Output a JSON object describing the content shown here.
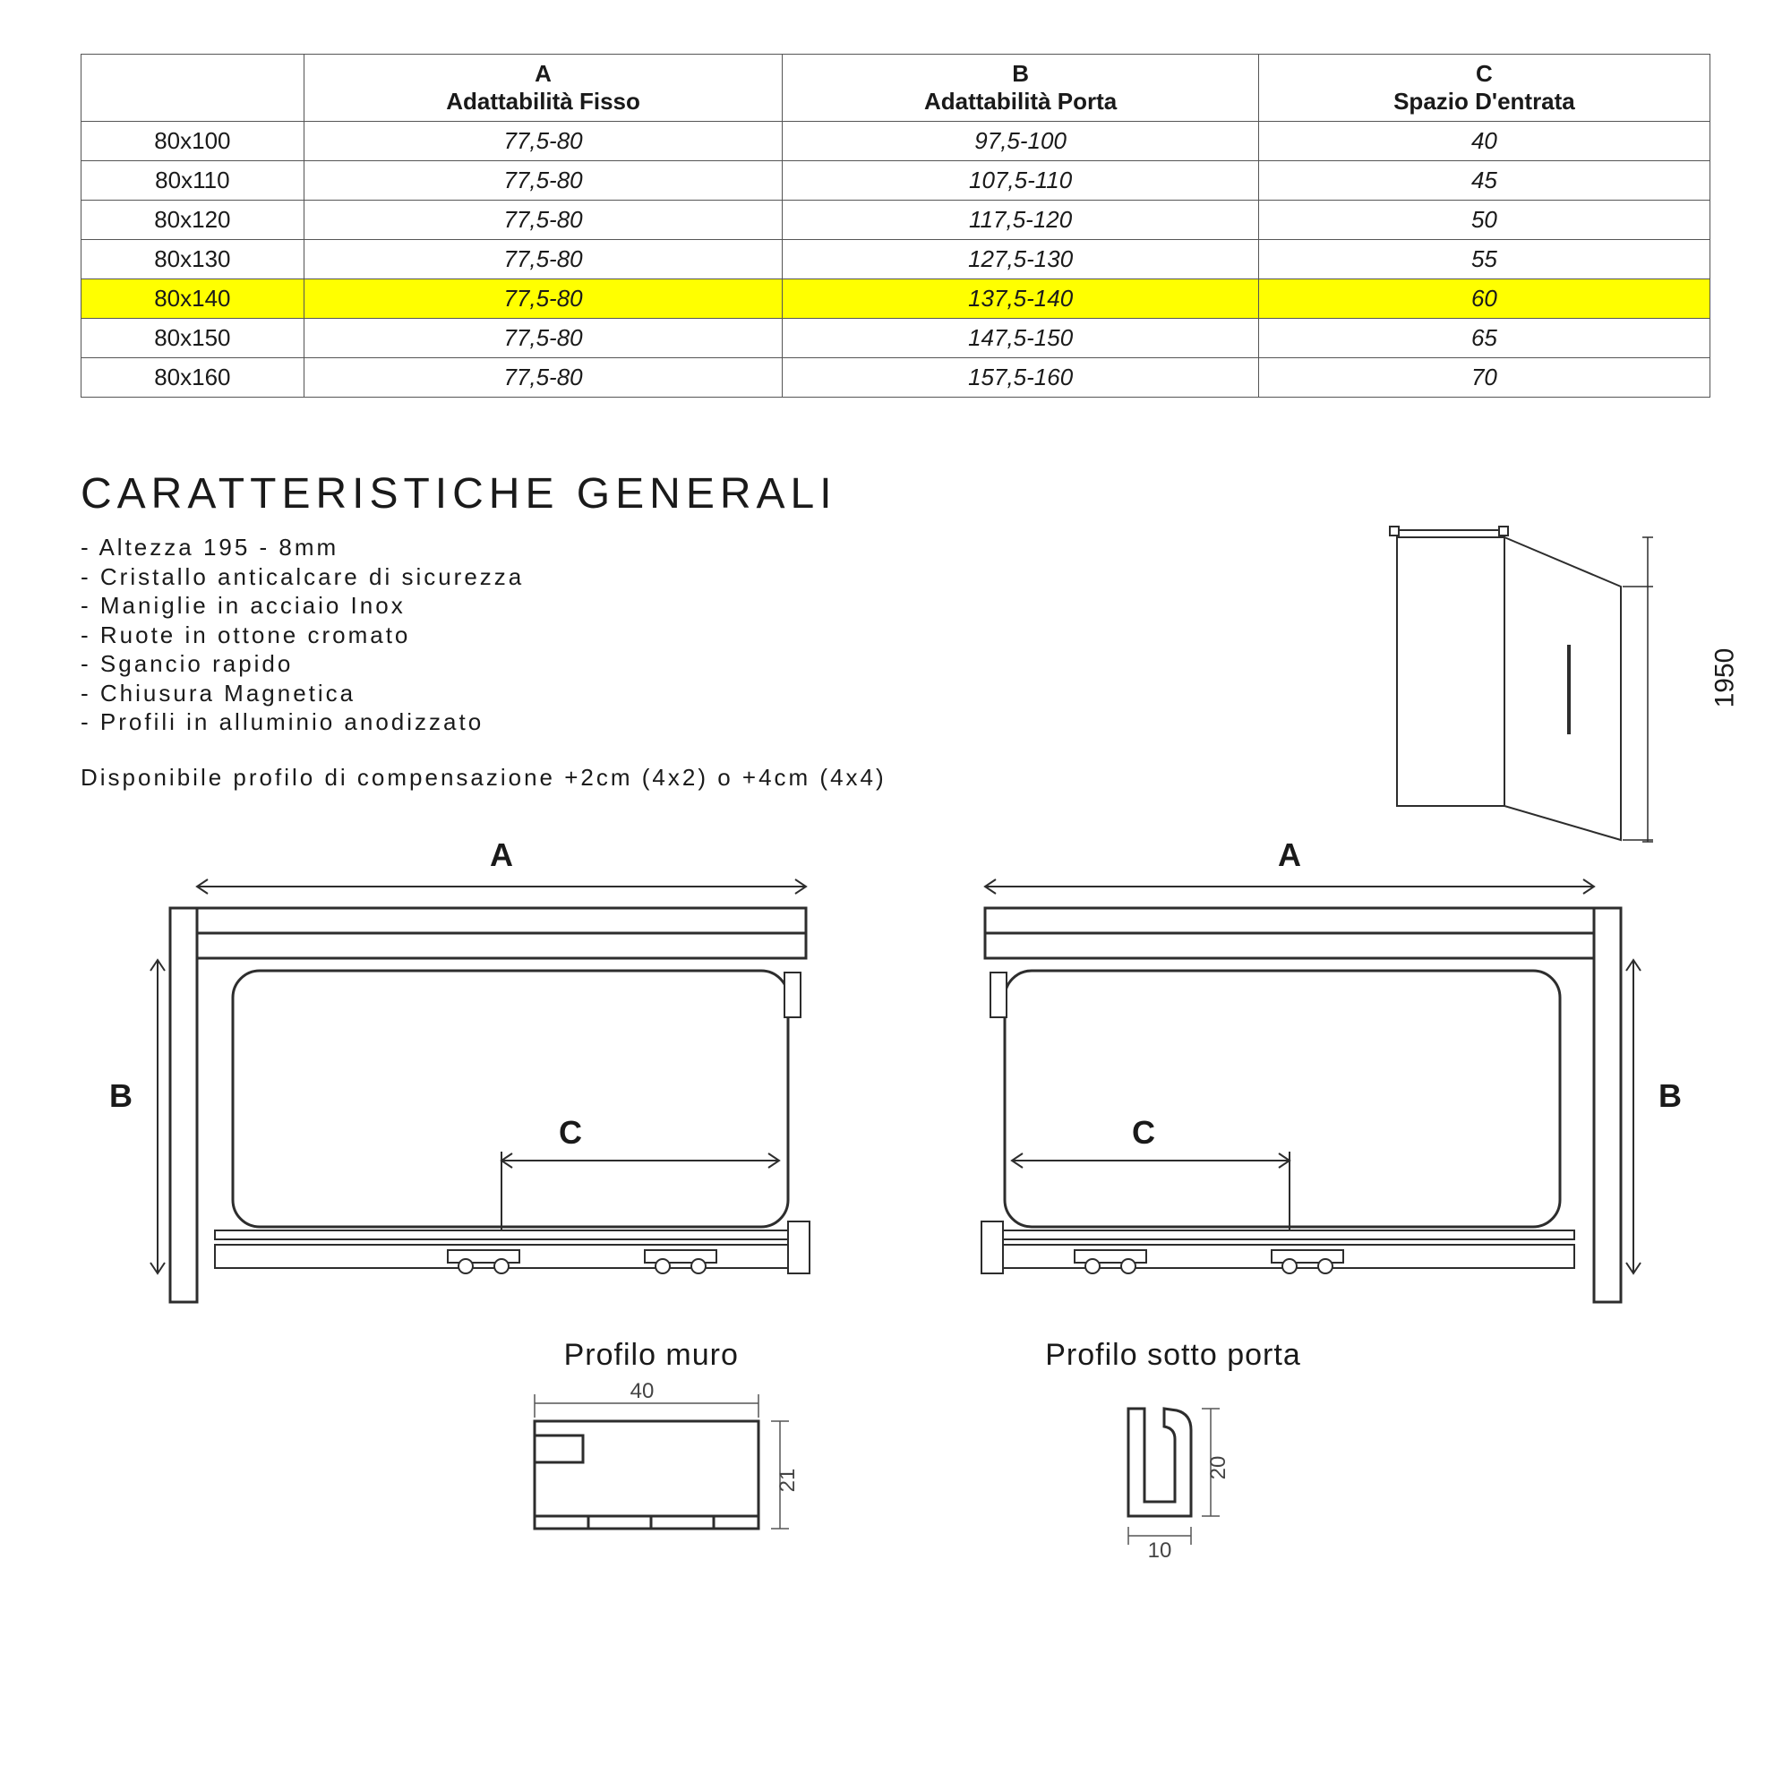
{
  "table": {
    "columns": [
      {
        "key": "",
        "sub": ""
      },
      {
        "key": "A",
        "sub": "Adattabilità Fisso"
      },
      {
        "key": "B",
        "sub": "Adattabilità Porta"
      },
      {
        "key": "C",
        "sub": "Spazio D'entrata"
      }
    ],
    "rows": [
      {
        "size": "80x100",
        "a": "77,5-80",
        "b": "97,5-100",
        "c": "40",
        "highlight": false
      },
      {
        "size": "80x110",
        "a": "77,5-80",
        "b": "107,5-110",
        "c": "45",
        "highlight": false
      },
      {
        "size": "80x120",
        "a": "77,5-80",
        "b": "117,5-120",
        "c": "50",
        "highlight": false
      },
      {
        "size": "80x130",
        "a": "77,5-80",
        "b": "127,5-130",
        "c": "55",
        "highlight": false
      },
      {
        "size": "80x140",
        "a": "77,5-80",
        "b": "137,5-140",
        "c": "60",
        "highlight": true
      },
      {
        "size": "80x150",
        "a": "77,5-80",
        "b": "147,5-150",
        "c": "65",
        "highlight": false
      },
      {
        "size": "80x160",
        "a": "77,5-80",
        "b": "157,5-160",
        "c": "70",
        "highlight": false
      }
    ],
    "highlight_color": "#ffff00",
    "border_color": "#555555"
  },
  "heading": "CARATTERISTICHE GENERALI",
  "features": [
    "Altezza 195 - 8mm",
    "Cristallo anticalcare di sicurezza",
    "Maniglie in acciaio Inox",
    "Ruote in ottone cromato",
    "Sgancio rapido",
    "Chiusura Magnetica",
    "Profili in alluminio anodizzato"
  ],
  "note": "Disponibile profilo di compensazione +2cm (4x2) o +4cm (4x4)",
  "iso_height_label": "1950",
  "plan_labels": {
    "a": "A",
    "b": "B",
    "c": "C"
  },
  "profile_wall": {
    "title": "Profilo muro",
    "w": "40",
    "h": "21"
  },
  "profile_door": {
    "title": "Profilo sotto porta",
    "w": "10",
    "h": "20"
  },
  "colors": {
    "line": "#2d2d2d",
    "line_light": "#888888",
    "bg": "#ffffff"
  }
}
